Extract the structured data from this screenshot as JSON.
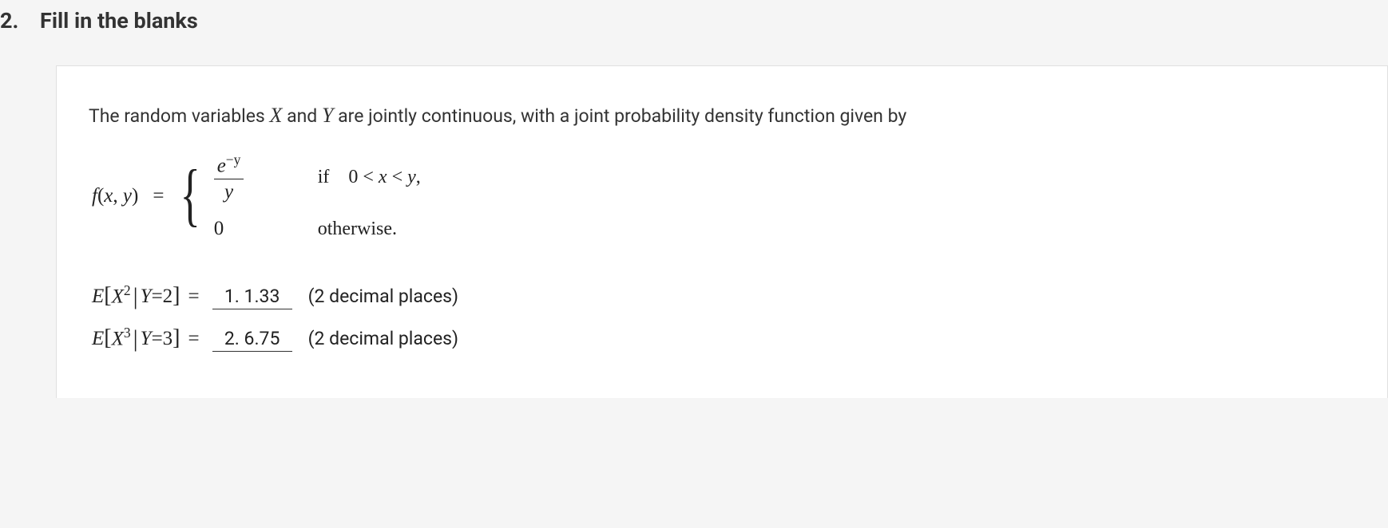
{
  "question": {
    "number": "2.",
    "title": "Fill in the blanks"
  },
  "problem": {
    "intro_prefix": "The random variables ",
    "var_x": "X",
    "intro_and": " and ",
    "var_y": "Y",
    "intro_suffix": " are jointly continuous, with a joint probability density function given by",
    "function_label": "f(x, y)",
    "equals": "=",
    "case1_numerator": "e",
    "case1_exponent": "−y",
    "case1_denominator": "y",
    "case1_if": "if",
    "case1_condition": "0 < x < y,",
    "case2_value": "0",
    "case2_condition": "otherwise."
  },
  "answers": {
    "line1": {
      "E": "E",
      "var": "X",
      "exp": "2",
      "cond_var": "Y",
      "cond_eq": "=2",
      "equals": "=",
      "answer_num": "1.",
      "answer_val": "1.33",
      "hint": "(2 decimal places)"
    },
    "line2": {
      "E": "E",
      "var": "X",
      "exp": "3",
      "cond_var": "Y",
      "cond_eq": "=3",
      "equals": "=",
      "answer_num": "2.",
      "answer_val": "6.75",
      "hint": "(2 decimal places)"
    }
  }
}
